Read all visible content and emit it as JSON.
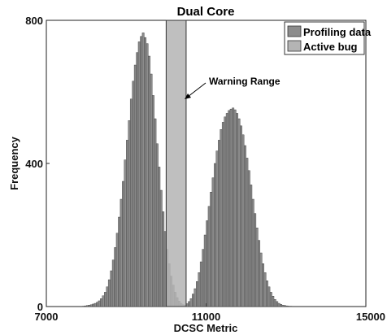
{
  "chart_data": {
    "type": "bar",
    "title": "Dual Core",
    "xlabel": "DCSC Metric",
    "ylabel": "Frequency",
    "xlim": [
      7000,
      15000
    ],
    "ylim": [
      0,
      800
    ],
    "xticks": [
      "7000",
      "11000",
      "15000"
    ],
    "yticks": [
      "0",
      "400",
      "800"
    ],
    "grid": false,
    "legend_position": "top-right",
    "colors": {
      "profiling": "#8c8c8c",
      "active_bug": "#b4b4b4",
      "edge": "#333333"
    },
    "series": [
      {
        "name": "Profiling data",
        "bins": [
          [
            7900,
            1
          ],
          [
            7950,
            2
          ],
          [
            8000,
            3
          ],
          [
            8050,
            4
          ],
          [
            8100,
            5
          ],
          [
            8150,
            7
          ],
          [
            8200,
            9
          ],
          [
            8250,
            12
          ],
          [
            8300,
            16
          ],
          [
            8350,
            22
          ],
          [
            8400,
            30
          ],
          [
            8450,
            40
          ],
          [
            8500,
            55
          ],
          [
            8550,
            75
          ],
          [
            8600,
            100
          ],
          [
            8650,
            130
          ],
          [
            8700,
            165
          ],
          [
            8750,
            205
          ],
          [
            8800,
            250
          ],
          [
            8850,
            300
          ],
          [
            8900,
            350
          ],
          [
            8950,
            410
          ],
          [
            9000,
            465
          ],
          [
            9050,
            520
          ],
          [
            9100,
            580
          ],
          [
            9150,
            630
          ],
          [
            9200,
            675
          ],
          [
            9250,
            710
          ],
          [
            9300,
            740
          ],
          [
            9350,
            755
          ],
          [
            9400,
            765
          ],
          [
            9450,
            752
          ],
          [
            9500,
            735
          ],
          [
            9550,
            700
          ],
          [
            9600,
            650
          ],
          [
            9650,
            590
          ],
          [
            9700,
            525
          ],
          [
            9750,
            455
          ],
          [
            9800,
            390
          ],
          [
            9850,
            325
          ],
          [
            9900,
            265
          ],
          [
            9950,
            210
          ],
          [
            10000,
            160
          ],
          [
            10050,
            120
          ],
          [
            10100,
            85
          ],
          [
            10150,
            60
          ],
          [
            10200,
            40
          ],
          [
            10250,
            25
          ],
          [
            10300,
            15
          ],
          [
            10350,
            9
          ],
          [
            10400,
            5
          ],
          [
            10450,
            3
          ],
          [
            10500,
            2
          ],
          [
            10550,
            1
          ],
          [
            10450,
            4
          ],
          [
            10500,
            8
          ],
          [
            10550,
            14
          ],
          [
            10600,
            22
          ],
          [
            10650,
            35
          ],
          [
            10700,
            50
          ],
          [
            10750,
            70
          ],
          [
            10800,
            95
          ],
          [
            10850,
            125
          ],
          [
            10900,
            160
          ],
          [
            10950,
            200
          ],
          [
            11000,
            240
          ],
          [
            11050,
            280
          ],
          [
            11100,
            320
          ],
          [
            11150,
            360
          ],
          [
            11200,
            400
          ],
          [
            11250,
            435
          ],
          [
            11300,
            465
          ],
          [
            11350,
            495
          ],
          [
            11400,
            515
          ],
          [
            11450,
            530
          ],
          [
            11500,
            540
          ],
          [
            11550,
            548
          ],
          [
            11600,
            552
          ],
          [
            11650,
            555
          ],
          [
            11700,
            550
          ],
          [
            11750,
            540
          ],
          [
            11800,
            525
          ],
          [
            11850,
            505
          ],
          [
            11900,
            480
          ],
          [
            11950,
            450
          ],
          [
            12000,
            415
          ],
          [
            12050,
            380
          ],
          [
            12100,
            340
          ],
          [
            12150,
            300
          ],
          [
            12200,
            260
          ],
          [
            12250,
            220
          ],
          [
            12300,
            185
          ],
          [
            12350,
            150
          ],
          [
            12400,
            120
          ],
          [
            12450,
            95
          ],
          [
            12500,
            72
          ],
          [
            12550,
            55
          ],
          [
            12600,
            40
          ],
          [
            12650,
            29
          ],
          [
            12700,
            20
          ],
          [
            12750,
            14
          ],
          [
            12800,
            9
          ],
          [
            12850,
            6
          ],
          [
            12900,
            4
          ],
          [
            12950,
            3
          ],
          [
            13000,
            2
          ],
          [
            13050,
            1
          ],
          [
            13100,
            1
          ]
        ],
        "bin_width": 50
      },
      {
        "name": "Active bug",
        "bins": [
          [
            10000,
            800
          ]
        ],
        "bin_width": 500
      }
    ],
    "annotations": [
      {
        "text": "Warning Range",
        "x": 10300,
        "y": 580
      }
    ]
  }
}
